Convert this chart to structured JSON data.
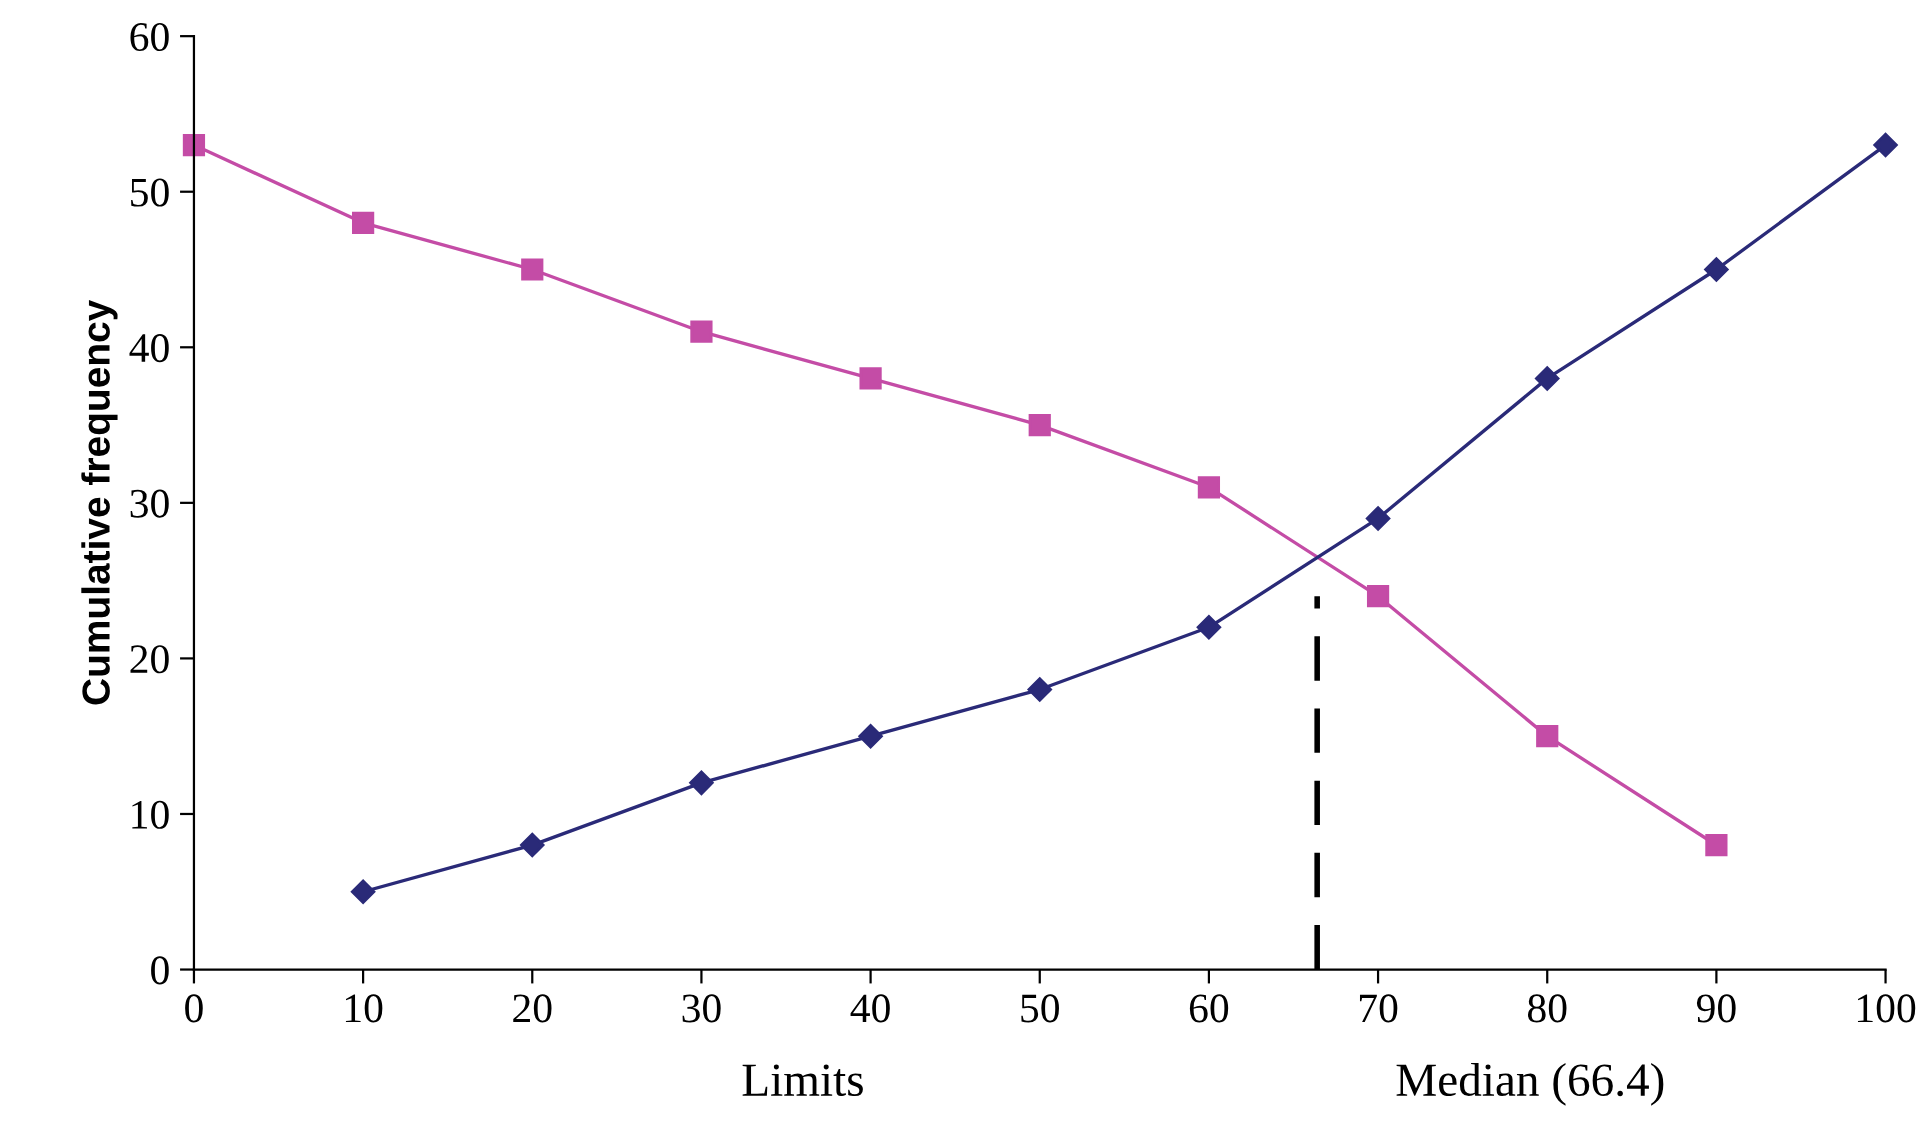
{
  "chart_data": {
    "type": "line",
    "ylabel": "Cumulative frequency",
    "xlabel": "Limits",
    "xlim": [
      0,
      100
    ],
    "xticks": [
      0,
      10,
      20,
      30,
      40,
      50,
      60,
      70,
      80,
      90,
      100
    ],
    "ylim": [
      0,
      60
    ],
    "yticks": [
      0,
      10,
      20,
      30,
      40,
      50,
      60
    ],
    "annotations": [
      "Median (66.4)"
    ],
    "series": [
      {
        "color": "#c44ca6",
        "marker": "square",
        "x": [
          0,
          10,
          20,
          30,
          40,
          50,
          60,
          70,
          80,
          90
        ],
        "values": [
          53,
          48,
          45,
          41,
          38,
          35,
          31,
          24,
          15,
          8
        ]
      },
      {
        "color": "#2a2a78",
        "marker": "diamond",
        "x": [
          10,
          20,
          30,
          40,
          50,
          60,
          70,
          80,
          90,
          100
        ],
        "values": [
          5,
          8,
          12,
          15,
          18,
          22,
          29,
          38,
          45,
          53
        ]
      },
      {
        "color": "#000000",
        "marker": "none",
        "line_style": "dashed",
        "x": [
          66.4,
          66.4
        ],
        "values": [
          0,
          24
        ]
      }
    ]
  }
}
